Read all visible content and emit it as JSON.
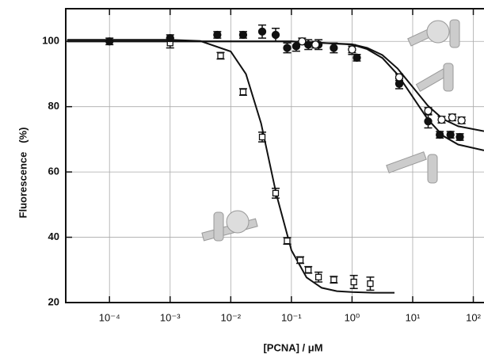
{
  "chart_data": {
    "type": "scatter",
    "x_label": "[PCNA] / μM",
    "y_label": "Fluorescence   (%)",
    "xlog": true,
    "grid": true,
    "xlim": [
      1.9e-05,
      150
    ],
    "ylim": [
      20,
      110
    ],
    "xticks": [
      {
        "value": 0.0001,
        "label": "10⁻⁴"
      },
      {
        "value": 0.001,
        "label": "10⁻³"
      },
      {
        "value": 0.01,
        "label": "10⁻²"
      },
      {
        "value": 0.1,
        "label": "10⁻¹"
      },
      {
        "value": 1,
        "label": "10⁰"
      },
      {
        "value": 10,
        "label": "10¹"
      },
      {
        "value": 100,
        "label": "10²"
      }
    ],
    "yticks": [
      20,
      40,
      60,
      80,
      100
    ],
    "series": [
      {
        "marker": "square-open",
        "color": "#111111",
        "x": [
          0.001,
          0.0068,
          0.016,
          0.033,
          0.055,
          0.085,
          0.14,
          0.19,
          0.28,
          0.5,
          1.07,
          2.0
        ],
        "values": [
          99.5,
          95.6,
          84.5,
          70.7,
          53.5,
          38.9,
          33,
          30,
          27.8,
          27,
          26.3,
          25.8
        ],
        "errors": [
          1.5,
          1,
          1,
          1.5,
          1.5,
          1,
          1,
          1,
          1.5,
          1,
          2,
          2
        ]
      },
      {
        "marker": "circle-filled",
        "color": "#111111",
        "x": [
          0.0001,
          0.001,
          0.006,
          0.016,
          0.033,
          0.055,
          0.085,
          0.12,
          0.19,
          0.28,
          0.5,
          1,
          1.2,
          6,
          18,
          28,
          42,
          60
        ],
        "values": [
          100,
          101,
          102,
          102,
          103,
          102,
          98,
          98.5,
          99,
          99,
          98,
          97.5,
          95,
          87,
          75.5,
          71.4,
          71.4,
          70.7
        ],
        "errors": [
          1,
          1,
          1,
          1,
          2,
          2,
          1.5,
          1.5,
          1.5,
          1.5,
          1.5,
          1.5,
          1,
          1.5,
          2,
          1,
          1,
          1
        ]
      },
      {
        "marker": "circle-open",
        "color": "#111111",
        "x": [
          0.15,
          0.25,
          1,
          6,
          18,
          30,
          45,
          64
        ],
        "values": [
          100,
          99,
          97.5,
          89,
          78.7,
          76,
          76.7,
          75.8
        ],
        "errors": [
          1,
          1,
          1,
          1,
          1,
          1,
          1,
          1
        ]
      }
    ],
    "fits": [
      {
        "color": "#111111",
        "x": [
          2e-05,
          0.001,
          0.00316,
          0.01,
          0.0178,
          0.0316,
          0.0562,
          0.1,
          0.178,
          0.316,
          0.562,
          1,
          2.24,
          5.01
        ],
        "values": [
          100.5,
          100.5,
          100.1,
          96.9,
          90.0,
          74.9,
          53.3,
          36.0,
          27.7,
          24.5,
          23.5,
          23.2,
          23.0,
          23.0
        ]
      },
      {
        "color": "#111111",
        "x": [
          2e-05,
          0.1,
          1,
          1.78,
          3.16,
          5.62,
          10,
          17.8,
          31.6,
          56.2,
          150
        ],
        "values": [
          100,
          100,
          99.0,
          97.6,
          94.9,
          89.9,
          83,
          76.1,
          71.1,
          68.4,
          66.6
        ]
      },
      {
        "color": "#111111",
        "x": [
          2e-05,
          0.1,
          1,
          1.78,
          3.16,
          5.62,
          10,
          17.8,
          31.6,
          56.2,
          150
        ],
        "values": [
          100,
          100,
          99.1,
          98.0,
          95.8,
          91.7,
          86,
          80.3,
          76.2,
          74.0,
          72.5
        ]
      }
    ]
  }
}
